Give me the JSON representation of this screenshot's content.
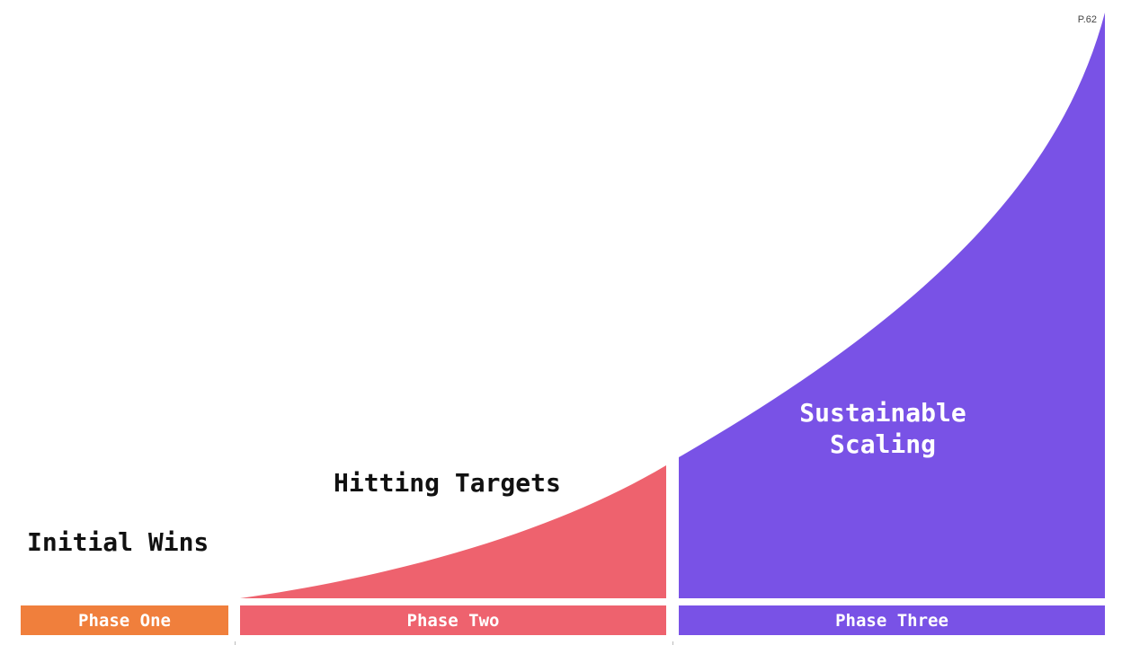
{
  "page": {
    "number": "P.62"
  },
  "stages": [
    {
      "title": "Initial Wins",
      "phase": "Phase One",
      "color": "#F07F3C"
    },
    {
      "title": "Hitting Targets",
      "phase": "Phase Two",
      "color": "#EE626E"
    },
    {
      "title": "Sustainable Scaling",
      "title_lines": [
        "Sustainable",
        "Scaling"
      ],
      "phase": "Phase Three",
      "color": "#7952E6"
    }
  ]
}
